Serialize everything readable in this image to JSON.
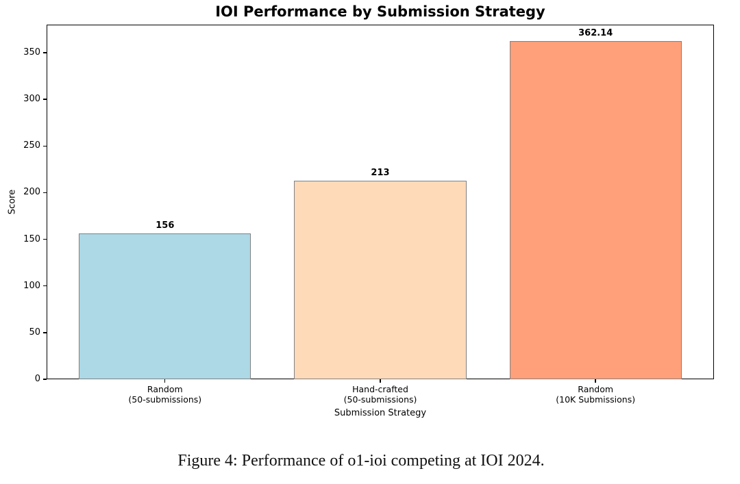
{
  "caption": "Figure 4: Performance of o1-ioi competing at IOI 2024.",
  "chart_data": {
    "type": "bar",
    "title": "IOI Performance by Submission Strategy",
    "xlabel": "Submission Strategy",
    "ylabel": "Score",
    "categories": [
      "Random\n(50-submissions)",
      "Hand-crafted\n(50-submissions)",
      "Random\n(10K Submissions)"
    ],
    "values": [
      156,
      213,
      362.14
    ],
    "value_labels": [
      "156",
      "213",
      "362.14"
    ],
    "bar_colors": [
      "#ADD8E6",
      "#FFDAB9",
      "#FFA07A"
    ],
    "bar_edge_color": "#808080",
    "ylim": [
      0,
      380
    ],
    "yticks": [
      0,
      50,
      100,
      150,
      200,
      250,
      300,
      350
    ],
    "xlim": [
      -0.55,
      2.55
    ],
    "bar_width": 0.8,
    "grid": false,
    "legend": null
  }
}
